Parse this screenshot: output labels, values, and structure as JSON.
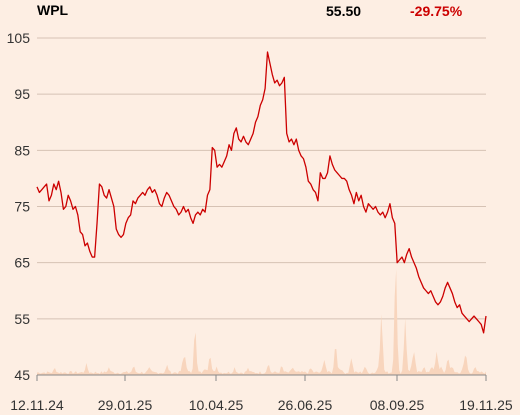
{
  "header": {
    "ticker": "WPL",
    "last_price": "55.50",
    "change_pct": "-29.75%"
  },
  "colors": {
    "background": "#fdeee3",
    "price_line": "#cc0000",
    "volume_fill": "#f8d5bd",
    "grid": "#d6c2b4",
    "change_negative": "#cc0000"
  },
  "chart_data": {
    "type": "line",
    "ylim": [
      45,
      105
    ],
    "y_ticks": [
      105,
      95,
      85,
      75,
      65,
      55,
      45
    ],
    "x_tick_labels": [
      "12.11.24",
      "29.01.25",
      "10.04.25",
      "26.06.25",
      "08.09.25",
      "19.11.25"
    ],
    "grid": "horizontal",
    "price": [
      78.5,
      77.5,
      78.0,
      78.5,
      79.0,
      76.0,
      77.0,
      79.0,
      78.0,
      79.5,
      77.5,
      74.5,
      75.0,
      77.0,
      76.0,
      74.5,
      75.0,
      73.5,
      70.5,
      70.0,
      68.0,
      68.5,
      67.0,
      66.0,
      66.0,
      72.0,
      79.0,
      78.5,
      77.0,
      76.5,
      78.0,
      76.5,
      75.0,
      71.0,
      70.0,
      69.5,
      70.0,
      72.0,
      73.0,
      73.5,
      76.0,
      75.5,
      76.5,
      77.0,
      77.5,
      77.0,
      78.0,
      78.5,
      77.5,
      78.0,
      77.0,
      75.5,
      75.0,
      76.5,
      77.5,
      77.0,
      76.0,
      75.0,
      74.5,
      73.5,
      74.0,
      75.0,
      74.0,
      74.5,
      73.0,
      72.0,
      73.5,
      74.0,
      73.5,
      74.5,
      74.0,
      77.0,
      78.0,
      85.5,
      85.0,
      82.0,
      82.5,
      82.0,
      83.0,
      84.0,
      86.0,
      85.0,
      88.0,
      89.0,
      87.0,
      86.5,
      87.5,
      86.5,
      86.0,
      87.0,
      88.0,
      90.0,
      91.0,
      93.0,
      94.0,
      96.0,
      102.5,
      100.5,
      98.5,
      97.0,
      97.5,
      96.5,
      97.0,
      98.0,
      88.0,
      86.5,
      87.0,
      86.0,
      87.0,
      85.0,
      84.0,
      83.5,
      82.0,
      79.5,
      79.0,
      78.0,
      77.5,
      76.0,
      81.0,
      80.0,
      80.0,
      81.0,
      84.0,
      82.5,
      81.5,
      81.0,
      80.5,
      80.0,
      80.0,
      79.5,
      78.0,
      77.0,
      75.5,
      77.5,
      76.0,
      77.0,
      75.0,
      74.0,
      75.5,
      75.0,
      74.5,
      75.0,
      74.0,
      73.5,
      74.0,
      73.0,
      74.0,
      75.5,
      73.0,
      72.0,
      65.0,
      65.5,
      66.0,
      65.0,
      66.5,
      67.5,
      66.0,
      65.0,
      64.0,
      62.5,
      61.5,
      60.5,
      60.0,
      59.5,
      60.0,
      59.0,
      58.0,
      57.5,
      58.0,
      59.0,
      60.5,
      61.5,
      60.5,
      59.5,
      58.0,
      57.0,
      57.5,
      56.0,
      55.5,
      55.0,
      54.5,
      55.0,
      55.5,
      55.0,
      54.5,
      54.0,
      52.5,
      55.5
    ],
    "volume_spike_positions": [
      [
        0.04,
        4
      ],
      [
        0.11,
        8
      ],
      [
        0.16,
        5
      ],
      [
        0.215,
        6
      ],
      [
        0.25,
        4
      ],
      [
        0.29,
        7
      ],
      [
        0.33,
        14
      ],
      [
        0.375,
        5
      ],
      [
        0.4,
        6
      ],
      [
        0.44,
        5
      ],
      [
        0.47,
        4
      ],
      [
        0.515,
        9
      ],
      [
        0.545,
        6
      ],
      [
        0.57,
        5
      ],
      [
        0.61,
        4
      ],
      [
        0.64,
        14
      ],
      [
        0.675,
        5
      ],
      [
        0.7,
        15
      ],
      [
        0.73,
        6
      ],
      [
        0.76,
        5
      ],
      [
        0.795,
        4
      ],
      [
        0.835,
        8
      ],
      [
        0.862,
        7
      ],
      [
        0.88,
        6
      ],
      [
        0.9,
        5
      ],
      [
        0.925,
        6
      ],
      [
        0.95,
        5
      ],
      [
        0.975,
        5
      ]
    ]
  }
}
